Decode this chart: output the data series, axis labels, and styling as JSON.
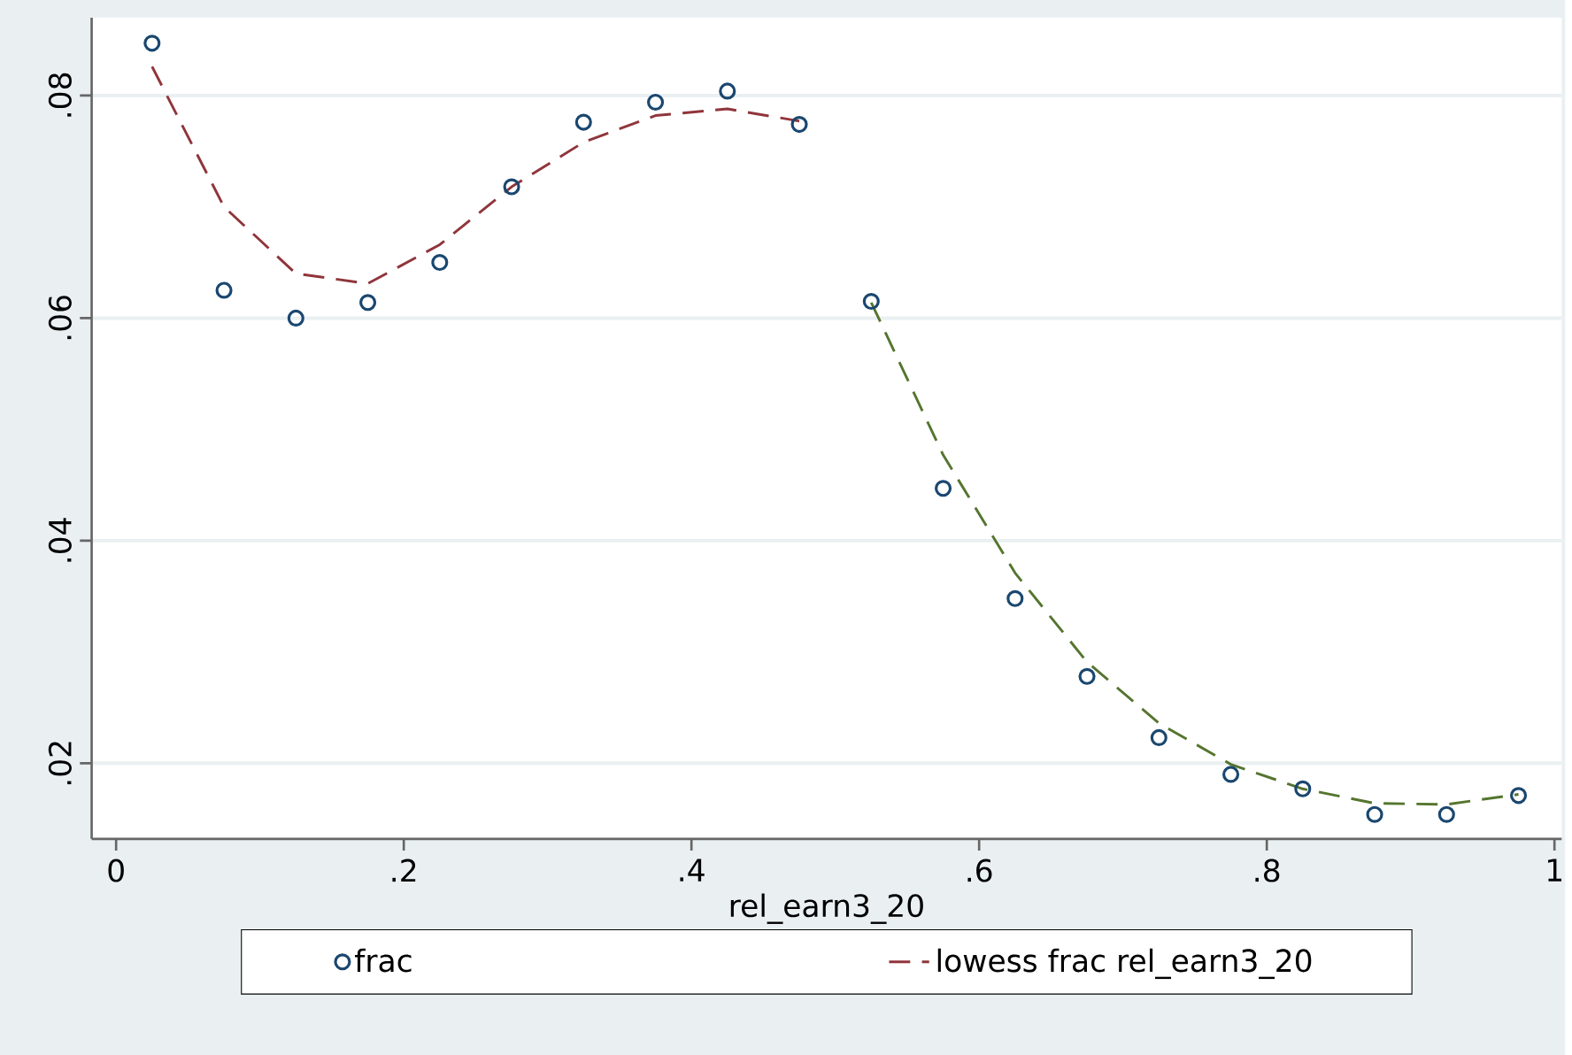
{
  "chart_data": {
    "type": "scatter",
    "xlabel": "rel_earn3_20",
    "xlim": [
      -0.017,
      1.005
    ],
    "ylim": [
      0.0132,
      0.087
    ],
    "xticks": [
      0,
      {
        "value": 0.2,
        "label": ".2"
      },
      {
        "value": 0.4,
        "label": ".4"
      },
      {
        "value": 0.6,
        "label": ".6"
      },
      {
        "value": 0.8,
        "label": ".8"
      },
      1
    ],
    "yticks": [
      {
        "value": 0.02,
        "label": ".02"
      },
      {
        "value": 0.04,
        "label": ".04"
      },
      {
        "value": 0.06,
        "label": ".06"
      },
      {
        "value": 0.08,
        "label": ".08"
      }
    ],
    "grid": "y",
    "legend": "bottom",
    "series": [
      {
        "name": "frac",
        "marker": "circle",
        "color": "#1a476f",
        "x": [
          0.025,
          0.075,
          0.125,
          0.175,
          0.225,
          0.275,
          0.325,
          0.375,
          0.425,
          0.475,
          0.525,
          0.575,
          0.625,
          0.675,
          0.725,
          0.775,
          0.825,
          0.875,
          0.925,
          0.975
        ],
        "values": [
          0.0847,
          0.0625,
          0.06,
          0.0614,
          0.065,
          0.0718,
          0.0776,
          0.0794,
          0.0804,
          0.0774,
          0.0615,
          0.0447,
          0.0348,
          0.0278,
          0.0223,
          0.019,
          0.0177,
          0.0154,
          0.0154,
          0.0171
        ]
      },
      {
        "name": "lowess frac rel_earn3_20",
        "type": "line",
        "line_style": "dashed",
        "color": "#90353b",
        "x": [
          0.025,
          0.075,
          0.125,
          0.175,
          0.225,
          0.275,
          0.325,
          0.375,
          0.425,
          0.475
        ],
        "values": [
          0.0826,
          0.07,
          0.064,
          0.0631,
          0.0666,
          0.0718,
          0.0758,
          0.0782,
          0.0788,
          0.0777
        ]
      },
      {
        "type": "line",
        "line_style": "dashed",
        "color": "#55752f",
        "x": [
          0.525,
          0.575,
          0.625,
          0.675,
          0.725,
          0.775,
          0.825,
          0.875,
          0.925,
          0.975
        ],
        "values": [
          0.0614,
          0.0477,
          0.0371,
          0.0291,
          0.0236,
          0.0199,
          0.0177,
          0.0164,
          0.0163,
          0.0172
        ]
      }
    ]
  }
}
